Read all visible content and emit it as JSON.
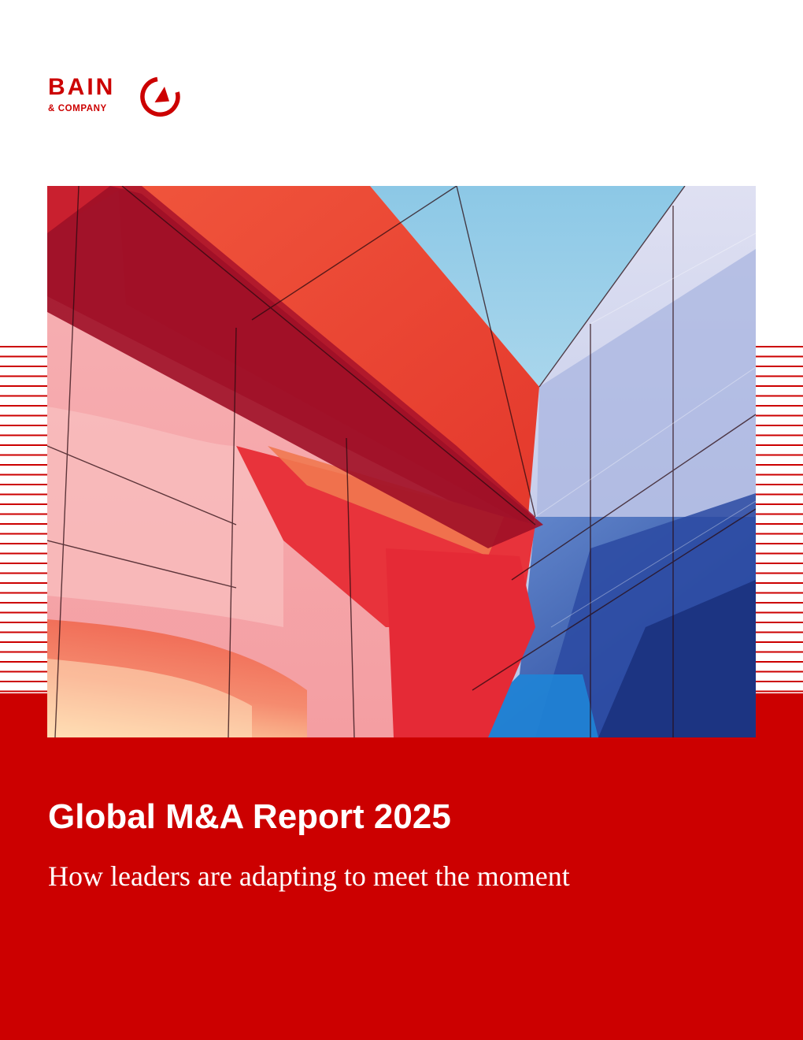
{
  "logo": {
    "wordmark": "BAIN",
    "subline": "& COMPANY",
    "icon": "compass-icon"
  },
  "cover": {
    "image_icon": "architecture-photo"
  },
  "report": {
    "title": "Global M&A Report 2025",
    "subtitle": "How leaders are adapting to meet the moment"
  },
  "colors": {
    "brand_red": "#cc0000",
    "text_on_red": "#ffffff",
    "background": "#ffffff"
  }
}
